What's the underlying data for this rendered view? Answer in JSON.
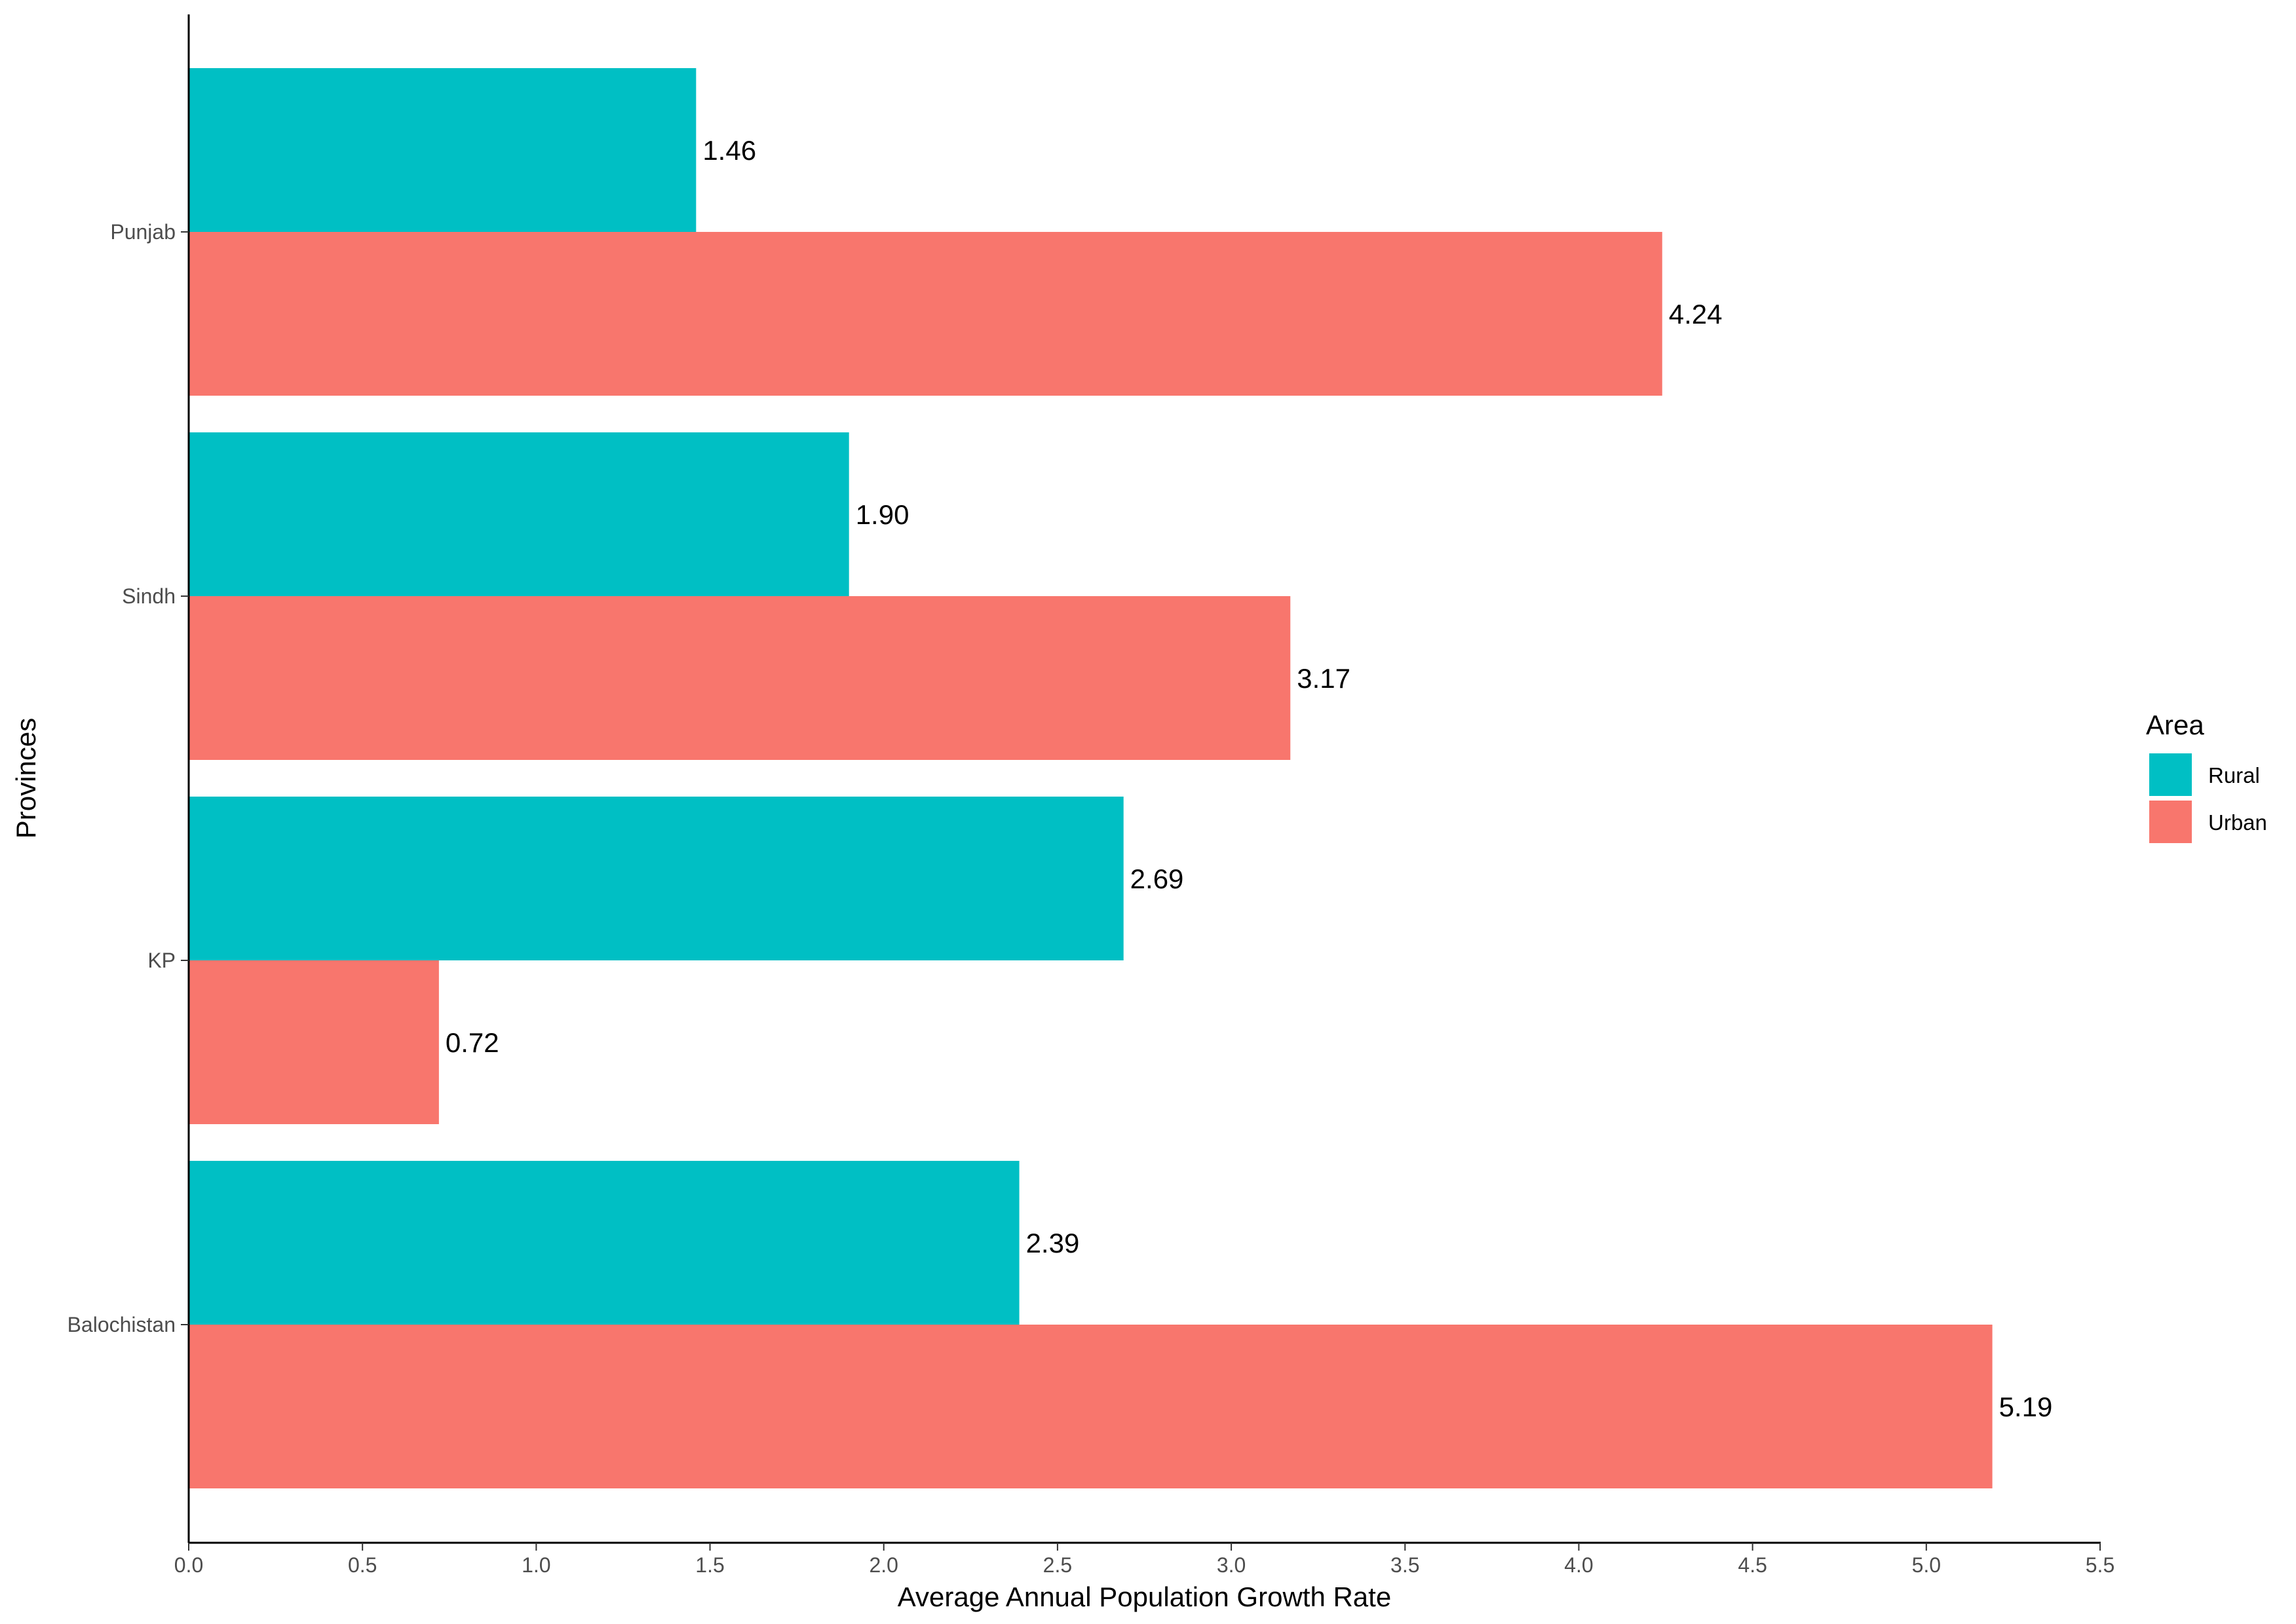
{
  "chart_data": {
    "type": "bar",
    "orientation": "horizontal",
    "categories": [
      "Punjab",
      "Sindh",
      "KP",
      "Balochistan"
    ],
    "series": [
      {
        "name": "Rural",
        "values": [
          1.46,
          1.9,
          2.69,
          2.39
        ],
        "color": "#00BFC4"
      },
      {
        "name": "Urban",
        "values": [
          4.24,
          3.17,
          0.72,
          5.19
        ],
        "color": "#F8766D"
      }
    ],
    "data_labels": {
      "Rural": [
        "1.46",
        "1.90",
        "2.69",
        "2.39"
      ],
      "Urban": [
        "4.24",
        "3.17",
        "0.72",
        "5.19"
      ]
    },
    "xlabel": "Average Annual Population Growth Rate",
    "ylabel": "Provinces",
    "xlim": [
      0,
      5.5
    ],
    "xticks": [
      "0.0",
      "0.5",
      "1.0",
      "1.5",
      "2.0",
      "2.5",
      "3.0",
      "3.5",
      "4.0",
      "4.5",
      "5.0",
      "5.5"
    ],
    "legend": {
      "title": "Area",
      "position": "right",
      "entries": [
        "Rural",
        "Urban"
      ]
    },
    "grid": false
  }
}
